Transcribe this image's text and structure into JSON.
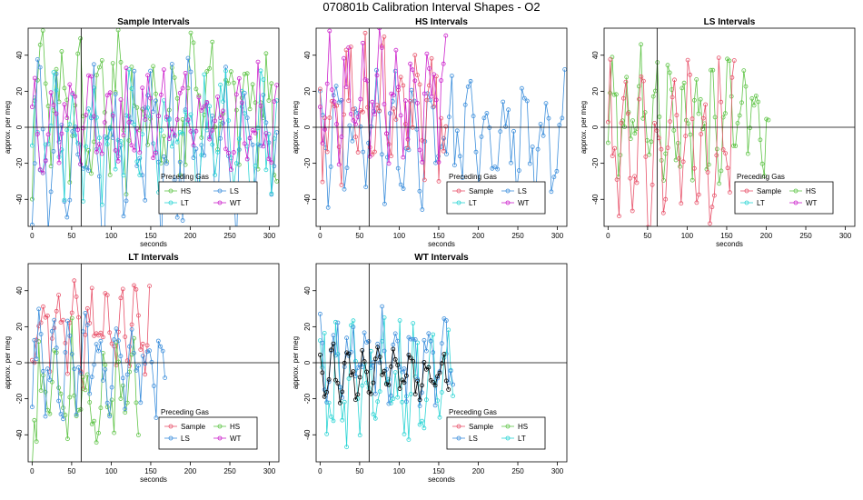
{
  "figure_title": "070801b   Calibration Interval Shapes - O2",
  "colors": {
    "Sample": "#e8536b",
    "HS": "#5fc447",
    "LS": "#3d8fdc",
    "LT": "#2ad4d4",
    "WT": "#cc22cc",
    "mean": "#000000",
    "frame": "#000000"
  },
  "chart_data": [
    {
      "type": "line",
      "title": "Sample Intervals",
      "xlabel": "seconds",
      "ylabel": "approx. per meg",
      "xlim": [
        -5,
        312
      ],
      "ylim": [
        -55,
        55
      ],
      "xticks": [
        0,
        50,
        100,
        150,
        200,
        250,
        300
      ],
      "yticks": [
        -40,
        -20,
        0,
        20,
        40
      ],
      "vline": 62,
      "hline": 0,
      "legend": {
        "title": "Preceding Gas",
        "position": "bottom-right",
        "entries": [
          "HS",
          "LS",
          "LT",
          "WT"
        ]
      },
      "series": [
        {
          "name": "HS",
          "gen": {
            "x0": 0,
            "x1": 310,
            "dx": 3.4,
            "amp": 26,
            "offset": 10,
            "noise": 24,
            "period": 7,
            "seed": 11
          }
        },
        {
          "name": "LS",
          "gen": {
            "x0": 0,
            "x1": 310,
            "dx": 3.4,
            "amp": 30,
            "offset": -14,
            "noise": 28,
            "period": 7,
            "seed": 12
          }
        },
        {
          "name": "LT",
          "gen": {
            "x0": 0,
            "x1": 310,
            "dx": 3.4,
            "amp": 22,
            "offset": -5,
            "noise": 20,
            "period": 7,
            "seed": 13
          }
        },
        {
          "name": "WT",
          "gen": {
            "x0": 0,
            "x1": 310,
            "dx": 3.4,
            "amp": 18,
            "offset": 4,
            "noise": 18,
            "period": 7,
            "seed": 14
          }
        }
      ]
    },
    {
      "type": "line",
      "title": "HS Intervals",
      "xlabel": "seconds",
      "ylabel": "approx. per meg",
      "xlim": [
        -5,
        312
      ],
      "ylim": [
        -55,
        55
      ],
      "xticks": [
        0,
        50,
        100,
        150,
        200,
        250,
        300
      ],
      "yticks": [
        -40,
        -20,
        0,
        20,
        40
      ],
      "vline": 62,
      "hline": 0,
      "legend": {
        "title": "Preceding Gas",
        "position": "bottom-right",
        "entries": [
          "Sample",
          "LS",
          "LT",
          "WT"
        ]
      },
      "series": [
        {
          "name": "LS",
          "gen": {
            "x0": 0,
            "x1": 310,
            "dx": 3.4,
            "amp": 22,
            "offset": -6,
            "noise": 20,
            "period": 7,
            "seed": 21
          }
        },
        {
          "name": "Sample",
          "gen": {
            "x0": 0,
            "x1": 160,
            "dx": 3.0,
            "amp": 26,
            "offset": 10,
            "noise": 22,
            "period": 7,
            "seed": 22
          }
        },
        {
          "name": "WT",
          "gen": {
            "x0": 0,
            "x1": 160,
            "dx": 3.0,
            "amp": 22,
            "offset": 18,
            "noise": 18,
            "period": 7,
            "seed": 23
          }
        }
      ]
    },
    {
      "type": "line",
      "title": "LS Intervals",
      "xlabel": "seconds",
      "ylabel": "approx. per meg",
      "xlim": [
        -5,
        312
      ],
      "ylim": [
        -55,
        55
      ],
      "xticks": [
        0,
        50,
        100,
        150,
        200,
        250,
        300
      ],
      "yticks": [
        -40,
        -20,
        0,
        20,
        40
      ],
      "vline": 62,
      "hline": 0,
      "legend": {
        "title": "Preceding Gas",
        "position": "bottom-right",
        "entries": [
          "Sample",
          "HS",
          "LT",
          "WT"
        ]
      },
      "series": [
        {
          "name": "HS",
          "gen": {
            "x0": 0,
            "x1": 205,
            "dx": 2.6,
            "amp": 22,
            "offset": 5,
            "noise": 20,
            "period": 7,
            "seed": 31
          }
        },
        {
          "name": "Sample",
          "gen": {
            "x0": 0,
            "x1": 160,
            "dx": 2.8,
            "amp": 28,
            "offset": -10,
            "noise": 26,
            "period": 7,
            "seed": 32
          }
        }
      ]
    },
    {
      "type": "line",
      "title": "LT Intervals",
      "xlabel": "seconds",
      "ylabel": "approx. per meg",
      "xlim": [
        -5,
        312
      ],
      "ylim": [
        -55,
        55
      ],
      "xticks": [
        0,
        50,
        100,
        150,
        200,
        250,
        300
      ],
      "yticks": [
        -40,
        -20,
        0,
        20,
        40
      ],
      "vline": 62,
      "hline": 0,
      "legend": {
        "title": "Preceding Gas",
        "position": "bottom-right",
        "entries": [
          "Sample",
          "HS",
          "LS",
          "WT"
        ]
      },
      "series": [
        {
          "name": "Sample",
          "gen": {
            "x0": 0,
            "x1": 150,
            "dx": 2.8,
            "amp": 18,
            "offset": 18,
            "noise": 16,
            "period": 7,
            "seed": 41
          }
        },
        {
          "name": "HS",
          "gen": {
            "x0": 0,
            "x1": 135,
            "dx": 2.8,
            "amp": 24,
            "offset": -20,
            "noise": 22,
            "period": 7,
            "seed": 42
          }
        },
        {
          "name": "LS",
          "gen": {
            "x0": 0,
            "x1": 170,
            "dx": 2.8,
            "amp": 16,
            "offset": -2,
            "noise": 16,
            "period": 7,
            "seed": 43
          }
        }
      ]
    },
    {
      "type": "line",
      "title": "WT Intervals",
      "xlabel": "seconds",
      "ylabel": "approx. per meg",
      "xlim": [
        -5,
        312
      ],
      "ylim": [
        -55,
        55
      ],
      "xticks": [
        0,
        50,
        100,
        150,
        200,
        250,
        300
      ],
      "yticks": [
        -40,
        -20,
        0,
        20,
        40
      ],
      "vline": 62,
      "hline": 0,
      "legend": {
        "title": "Preceding Gas",
        "position": "bottom-right",
        "entries": [
          "Sample",
          "HS",
          "LS",
          "LT"
        ]
      },
      "series": [
        {
          "name": "LT",
          "gen": {
            "x0": 0,
            "x1": 170,
            "dx": 2.8,
            "amp": 22,
            "offset": -14,
            "noise": 22,
            "period": 7,
            "seed": 51
          }
        },
        {
          "name": "LS",
          "gen": {
            "x0": 0,
            "x1": 170,
            "dx": 2.8,
            "amp": 16,
            "offset": 2,
            "noise": 14,
            "period": 7,
            "seed": 52
          }
        },
        {
          "name": "mean",
          "gen": {
            "x0": 0,
            "x1": 165,
            "dx": 2.8,
            "amp": 10,
            "offset": -6,
            "noise": 8,
            "period": 7,
            "seed": 53
          }
        }
      ]
    }
  ]
}
